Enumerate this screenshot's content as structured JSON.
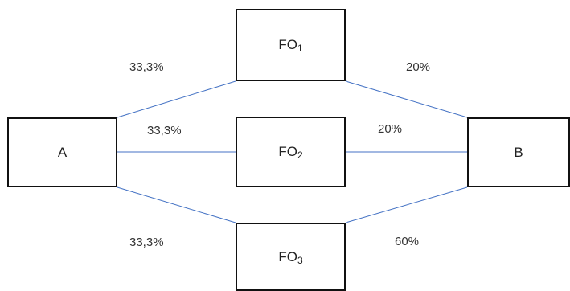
{
  "diagram": {
    "nodes": {
      "a": {
        "label": "A"
      },
      "fo1": {
        "label": "FO",
        "sub": "1"
      },
      "fo2": {
        "label": "FO",
        "sub": "2"
      },
      "fo3": {
        "label": "FO",
        "sub": "3"
      },
      "b": {
        "label": "B"
      }
    },
    "edges": {
      "a_fo1": {
        "label": "33,3%"
      },
      "a_fo2": {
        "label": "33,3%"
      },
      "a_fo3": {
        "label": "33,3%"
      },
      "fo1_b": {
        "label": "20%"
      },
      "fo2_b": {
        "label": "20%"
      },
      "fo3_b": {
        "label": "60%"
      }
    },
    "colors": {
      "edge": "#4472c4",
      "box_border": "#111111"
    }
  }
}
